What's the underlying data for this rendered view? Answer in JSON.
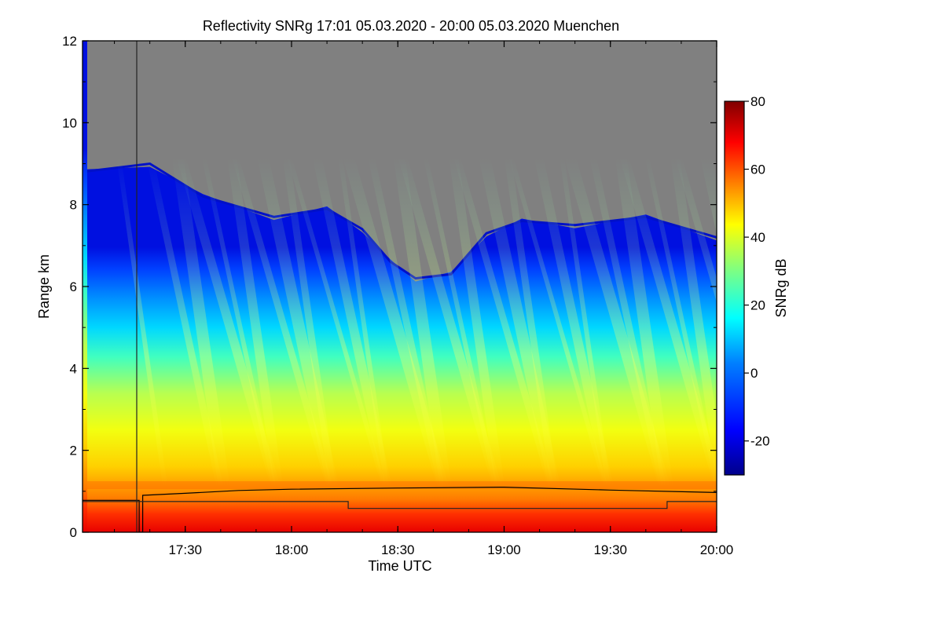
{
  "chart_data": {
    "type": "heatmap",
    "title": "Reflectivity SNRg   17:01 05.03.2020 - 20:00 05.03.2020 Muenchen",
    "xlabel": "Time UTC",
    "ylabel": "Range km",
    "x_ticks": [
      "17:30",
      "18:00",
      "18:30",
      "19:00",
      "19:30",
      "20:00"
    ],
    "y_ticks": [
      "0",
      "2",
      "4",
      "6",
      "8",
      "10",
      "12"
    ],
    "xlim": [
      "17:01",
      "20:00"
    ],
    "ylim": [
      0,
      12
    ],
    "grid": false,
    "colorbar": {
      "label": "SNRg dB",
      "range": [
        -30,
        80
      ],
      "ticks": [
        "-20",
        "0",
        "20",
        "40",
        "60",
        "80"
      ],
      "colormap": [
        "#00008b",
        "#0000ff",
        "#0080ff",
        "#00ffff",
        "#80ff80",
        "#ffff00",
        "#ff8000",
        "#ff0000",
        "#800000"
      ]
    },
    "no_signal_color": "#808080",
    "cloud_top_km": [
      {
        "time": "17:01",
        "km": 8.8
      },
      {
        "time": "17:20",
        "km": 9.0
      },
      {
        "time": "17:35",
        "km": 8.2
      },
      {
        "time": "17:55",
        "km": 7.7
      },
      {
        "time": "18:10",
        "km": 7.9
      },
      {
        "time": "18:20",
        "km": 7.4
      },
      {
        "time": "18:28",
        "km": 6.6
      },
      {
        "time": "18:35",
        "km": 6.2
      },
      {
        "time": "18:45",
        "km": 6.3
      },
      {
        "time": "18:55",
        "km": 7.3
      },
      {
        "time": "19:05",
        "km": 7.6
      },
      {
        "time": "19:20",
        "km": 7.5
      },
      {
        "time": "19:40",
        "km": 7.7
      },
      {
        "time": "20:00",
        "km": 7.2
      }
    ],
    "mixing_layer_km": [
      {
        "time": "17:01",
        "km": 0.78
      },
      {
        "time": "17:17",
        "km": 0.78
      },
      {
        "time": "17:17",
        "km": 0.0
      },
      {
        "time": "17:18",
        "km": 0.0
      },
      {
        "time": "17:18",
        "km": 0.9
      },
      {
        "time": "17:30",
        "km": 0.95
      },
      {
        "time": "17:45",
        "km": 1.02
      },
      {
        "time": "18:00",
        "km": 1.05
      },
      {
        "time": "18:30",
        "km": 1.08
      },
      {
        "time": "19:00",
        "km": 1.1
      },
      {
        "time": "19:30",
        "km": 1.03
      },
      {
        "time": "20:00",
        "km": 0.97
      }
    ],
    "lowest_layer_km": [
      {
        "time": "17:01",
        "km": 0.75
      },
      {
        "time": "18:16",
        "km": 0.75
      },
      {
        "time": "18:16",
        "km": 0.58
      },
      {
        "time": "19:46",
        "km": 0.58
      },
      {
        "time": "19:46",
        "km": 0.75
      },
      {
        "time": "20:00",
        "km": 0.75
      }
    ]
  }
}
